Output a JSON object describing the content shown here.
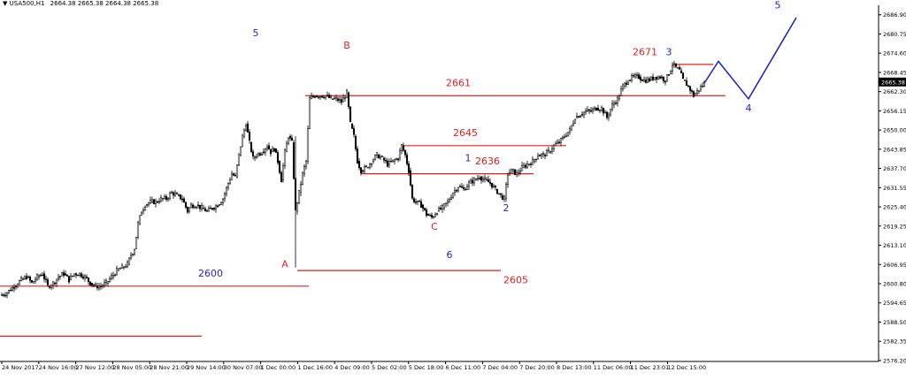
{
  "chart_data": {
    "type": "candlestick",
    "header": {
      "symbol": "USA500,H1",
      "ohlc": [
        "2664.38",
        "2665.38",
        "2664.38",
        "2665.38"
      ]
    },
    "ylim": [
      2575.9,
      2688.8
    ],
    "price_ticks": [
      "2686.90",
      "2680.75",
      "2674.60",
      "2668.45",
      "2662.30",
      "2656.15",
      "2650.00",
      "2643.85",
      "2637.70",
      "2631.55",
      "2625.40",
      "2619.25",
      "2613.10",
      "2606.95",
      "2600.80",
      "2594.65",
      "2588.50",
      "2582.35",
      "2576.20"
    ],
    "time_ticks": [
      "24 Nov 2017",
      "24 Nov 16:00",
      "27 Nov 12:00",
      "28 Nov 05:00",
      "28 Nov 21:00",
      "29 Nov 14:00",
      "30 Nov 07:00",
      "1 Dec 00:00",
      "1 Dec 16:00",
      "4 Dec 09:00",
      "5 Dec 02:00",
      "5 Dec 18:00",
      "6 Dec 11:00",
      "7 Dec 04:00",
      "7 Dec 20:00",
      "8 Dec 13:00",
      "11 Dec 06:00",
      "11 Dec 23:01",
      "12 Dec 15:00"
    ],
    "current_price": "2665.38",
    "price_path": [
      [
        0,
        2597
      ],
      [
        8,
        2598
      ],
      [
        16,
        2600
      ],
      [
        24,
        2602
      ],
      [
        30,
        2603
      ],
      [
        36,
        2601
      ],
      [
        42,
        2603
      ],
      [
        48,
        2604
      ],
      [
        54,
        2600
      ],
      [
        60,
        2601
      ],
      [
        66,
        2603
      ],
      [
        72,
        2604
      ],
      [
        78,
        2602
      ],
      [
        84,
        2604
      ],
      [
        90,
        2604
      ],
      [
        96,
        2603
      ],
      [
        102,
        2601
      ],
      [
        108,
        2600
      ],
      [
        114,
        2600
      ],
      [
        120,
        2601
      ],
      [
        126,
        2603
      ],
      [
        132,
        2605
      ],
      [
        138,
        2606
      ],
      [
        144,
        2607
      ],
      [
        148,
        2610
      ],
      [
        152,
        2612
      ],
      [
        156,
        2620
      ],
      [
        160,
        2624
      ],
      [
        164,
        2626
      ],
      [
        170,
        2627
      ],
      [
        176,
        2627
      ],
      [
        182,
        2628
      ],
      [
        188,
        2628
      ],
      [
        194,
        2630
      ],
      [
        200,
        2629
      ],
      [
        206,
        2628
      ],
      [
        212,
        2624
      ],
      [
        216,
        2626
      ],
      [
        222,
        2626
      ],
      [
        228,
        2625
      ],
      [
        234,
        2624
      ],
      [
        240,
        2625
      ],
      [
        246,
        2626
      ],
      [
        252,
        2628
      ],
      [
        258,
        2633
      ],
      [
        262,
        2636
      ],
      [
        266,
        2635
      ],
      [
        270,
        2642
      ],
      [
        274,
        2648
      ],
      [
        278,
        2652
      ],
      [
        282,
        2646
      ],
      [
        286,
        2641
      ],
      [
        290,
        2642
      ],
      [
        296,
        2643
      ],
      [
        302,
        2645
      ],
      [
        306,
        2643
      ],
      [
        310,
        2644
      ],
      [
        314,
        2640
      ],
      [
        318,
        2634
      ],
      [
        322,
        2643
      ],
      [
        326,
        2648
      ],
      [
        330,
        2646
      ],
      [
        334,
        2624
      ],
      [
        338,
        2630
      ],
      [
        342,
        2636
      ],
      [
        346,
        2640
      ],
      [
        350,
        2660
      ],
      [
        356,
        2661
      ],
      [
        362,
        2661
      ],
      [
        368,
        2661
      ],
      [
        374,
        2660
      ],
      [
        380,
        2660
      ],
      [
        386,
        2659
      ],
      [
        392,
        2662
      ],
      [
        396,
        2652
      ],
      [
        400,
        2648
      ],
      [
        404,
        2640
      ],
      [
        408,
        2637
      ],
      [
        414,
        2638
      ],
      [
        420,
        2640
      ],
      [
        426,
        2642
      ],
      [
        432,
        2641
      ],
      [
        438,
        2639
      ],
      [
        444,
        2640
      ],
      [
        450,
        2641
      ],
      [
        454,
        2645
      ],
      [
        458,
        2642
      ],
      [
        462,
        2637
      ],
      [
        466,
        2628
      ],
      [
        470,
        2627
      ],
      [
        476,
        2626
      ],
      [
        482,
        2623
      ],
      [
        488,
        2622
      ],
      [
        494,
        2624
      ],
      [
        500,
        2625
      ],
      [
        506,
        2627
      ],
      [
        512,
        2630
      ],
      [
        518,
        2632
      ],
      [
        524,
        2631
      ],
      [
        530,
        2633
      ],
      [
        536,
        2634
      ],
      [
        542,
        2635
      ],
      [
        548,
        2634
      ],
      [
        554,
        2633
      ],
      [
        560,
        2631
      ],
      [
        566,
        2629
      ],
      [
        570,
        2628
      ],
      [
        574,
        2636
      ],
      [
        578,
        2637
      ],
      [
        584,
        2636
      ],
      [
        590,
        2638
      ],
      [
        596,
        2639
      ],
      [
        602,
        2640
      ],
      [
        608,
        2642
      ],
      [
        614,
        2642
      ],
      [
        620,
        2643
      ],
      [
        626,
        2645
      ],
      [
        632,
        2646
      ],
      [
        638,
        2648
      ],
      [
        644,
        2650
      ],
      [
        650,
        2654
      ],
      [
        656,
        2655
      ],
      [
        662,
        2656
      ],
      [
        668,
        2656
      ],
      [
        674,
        2657
      ],
      [
        680,
        2657
      ],
      [
        686,
        2654
      ],
      [
        692,
        2658
      ],
      [
        698,
        2660
      ],
      [
        704,
        2664
      ],
      [
        710,
        2666
      ],
      [
        716,
        2667
      ],
      [
        722,
        2667
      ],
      [
        728,
        2666
      ],
      [
        734,
        2666
      ],
      [
        740,
        2667
      ],
      [
        746,
        2667
      ],
      [
        752,
        2666
      ],
      [
        756,
        2668
      ],
      [
        760,
        2671
      ],
      [
        764,
        2670
      ],
      [
        768,
        2669
      ],
      [
        772,
        2666
      ],
      [
        778,
        2664
      ],
      [
        784,
        2661
      ],
      [
        790,
        2663
      ],
      [
        796,
        2665
      ]
    ],
    "levels": [
      {
        "label": "2661",
        "value": 2661
      },
      {
        "label": "2645",
        "value": 2645
      },
      {
        "label": "2636",
        "value": 2636
      },
      {
        "label": "2605",
        "value": 2605
      },
      {
        "label": "2600",
        "value": 2600
      },
      {
        "label": "2671",
        "value": 2671
      },
      {
        "label": "",
        "value": 2584
      }
    ],
    "projection_path": [
      [
        796,
        2665
      ],
      [
        812,
        2672
      ],
      [
        846,
        2660
      ],
      [
        900,
        2686
      ]
    ],
    "wave_labels": [
      {
        "text": "5",
        "color": "#2323d8",
        "x": 289,
        "y": 2680
      },
      {
        "text": "B",
        "color": "#e02020",
        "x": 392,
        "y": 2676
      },
      {
        "text": "A",
        "color": "#e02020",
        "x": 322,
        "y": 2606
      },
      {
        "text": "C",
        "color": "#e02020",
        "x": 491,
        "y": 2618
      },
      {
        "text": "6",
        "color": "#2323d8",
        "x": 508,
        "y": 2609
      },
      {
        "text": "1",
        "color": "#2323d8",
        "x": 529,
        "y": 2640
      },
      {
        "text": "2",
        "color": "#2323d8",
        "x": 572,
        "y": 2624
      },
      {
        "text": "3",
        "color": "#2323d8",
        "x": 756,
        "y": 2674
      },
      {
        "text": "4",
        "color": "#2323d8",
        "x": 846,
        "y": 2656
      },
      {
        "text": "5",
        "color": "#2323d8",
        "x": 879,
        "y": 2689
      }
    ],
    "level_labels": [
      {
        "text": "2661",
        "color": "#e02020",
        "x": 518,
        "y": 2664
      },
      {
        "text": "2645",
        "color": "#e02020",
        "x": 526,
        "y": 2648
      },
      {
        "text": "2636",
        "color": "#e02020",
        "x": 551,
        "y": 2639
      },
      {
        "text": "2671",
        "color": "#e02020",
        "x": 729,
        "y": 2674
      },
      {
        "text": "2600",
        "color": "#2323d8",
        "x": 238,
        "y": 2603
      },
      {
        "text": "2605",
        "color": "#e02020",
        "x": 583,
        "y": 2601
      }
    ],
    "colors": {
      "level_line": "#e02020",
      "projection": "#1c1cd0",
      "candles": "#000000",
      "axis": "#000000",
      "price_tag_bg": "#000000",
      "price_tag_text": "#ffffff"
    }
  }
}
